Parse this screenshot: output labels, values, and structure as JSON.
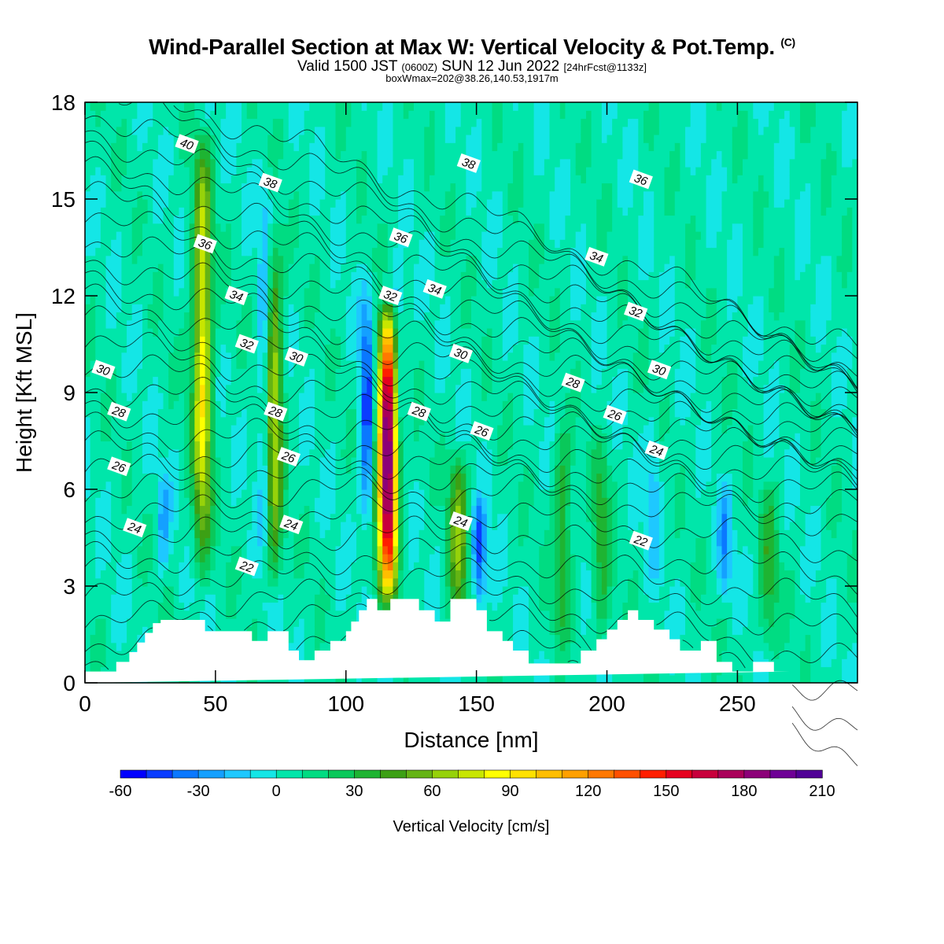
{
  "title": {
    "main": "Wind-Parallel Section at Max W: Vertical Velocity & Pot.Temp.",
    "main_mark": "(C)",
    "valid_prefix": "Valid 1500 JST",
    "valid_utc": "(0600Z)",
    "valid_date": "SUN 12 Jun 2022",
    "valid_fcst": "[24hrFcst@1133z]",
    "box": "boxWmax=202@38.26,140.53,1917m"
  },
  "chart_data": {
    "type": "heatmap",
    "xlabel": "Distance [nm]",
    "ylabel": "Height [Kft MSL]",
    "xlim": [
      0,
      296
    ],
    "ylim": [
      0,
      18
    ],
    "x_ticks": [
      "0",
      "50",
      "100",
      "150",
      "200",
      "250"
    ],
    "x_tick_values": [
      0,
      50,
      100,
      150,
      200,
      250
    ],
    "y_ticks": [
      "0",
      "3",
      "6",
      "9",
      "12",
      "15",
      "18"
    ],
    "y_tick_values": [
      0,
      3,
      6,
      9,
      12,
      15,
      18
    ],
    "colorbar": {
      "label": "Vertical Velocity [cm/s]",
      "ticks": [
        "-60",
        "-30",
        "0",
        "30",
        "60",
        "90",
        "120",
        "150",
        "180",
        "210"
      ],
      "tick_values": [
        -60,
        -30,
        0,
        30,
        60,
        90,
        120,
        150,
        180,
        210
      ],
      "min": -60,
      "max": 210,
      "step": 10,
      "colors": [
        "#0000ff",
        "#0a3cff",
        "#0a78ff",
        "#14a0ff",
        "#1ec8ff",
        "#14e6e6",
        "#00e6aa",
        "#00dc82",
        "#0ac85a",
        "#1eb432",
        "#3ca014",
        "#64b414",
        "#96d20a",
        "#c8e600",
        "#ffff00",
        "#ffe100",
        "#ffbe00",
        "#ffa000",
        "#ff7800",
        "#ff5000",
        "#ff1e00",
        "#e6001e",
        "#c8003c",
        "#aa005a",
        "#8c0078",
        "#6e0096",
        "#500096"
      ]
    },
    "terrain_profile": {
      "x": [
        0,
        12,
        12,
        17,
        17,
        20,
        20,
        23,
        23,
        26,
        26,
        29,
        29,
        32,
        32,
        46,
        46,
        64,
        64,
        70,
        70,
        78,
        78,
        82,
        82,
        88,
        88,
        94,
        94,
        100,
        100,
        102,
        102,
        105,
        105,
        108,
        108,
        112,
        112,
        117,
        117,
        128,
        128,
        134,
        134,
        140,
        140,
        150,
        150,
        154,
        154,
        160,
        160,
        164,
        164,
        170,
        170,
        190,
        190,
        196,
        196,
        200,
        200,
        204,
        204,
        208,
        208,
        212,
        212,
        218,
        218,
        224,
        224,
        228,
        228,
        232,
        232,
        236,
        236,
        242,
        242,
        248,
        248,
        256,
        256,
        264,
        264,
        270,
        270,
        278,
        278,
        296
      ],
      "y": [
        0.35,
        0.35,
        0.65,
        0.65,
        0.95,
        0.95,
        1.25,
        1.25,
        1.55,
        1.55,
        1.85,
        1.85,
        1.95,
        1.95,
        1.95,
        1.95,
        1.6,
        1.6,
        1.3,
        1.3,
        1.6,
        1.6,
        1.0,
        1.0,
        0.7,
        0.7,
        1.0,
        1.0,
        1.3,
        1.3,
        1.6,
        1.6,
        1.9,
        1.9,
        2.25,
        2.25,
        2.6,
        2.6,
        2.25,
        2.25,
        2.6,
        2.6,
        2.25,
        2.25,
        1.9,
        1.9,
        2.6,
        2.6,
        2.25,
        2.25,
        1.6,
        1.6,
        1.3,
        1.3,
        1.0,
        1.0,
        0.6,
        0.6,
        1.0,
        1.0,
        1.35,
        1.35,
        1.65,
        1.65,
        1.95,
        1.95,
        2.25,
        2.25,
        1.95,
        1.95,
        1.65,
        1.65,
        1.35,
        1.35,
        1.0,
        1.0,
        1.0,
        1.0,
        1.3,
        1.3,
        0.65,
        0.65,
        0.35,
        0.35,
        0.65,
        0.65,
        0.35,
        0.35
      ]
    },
    "updraft_cores": [
      {
        "x": 45,
        "y0": 2.8,
        "y1": 17.5,
        "peak": 85
      },
      {
        "x": 72,
        "y0": 2.4,
        "y1": 14.5,
        "peak": 70
      },
      {
        "x": 116,
        "y0": 2.2,
        "y1": 12.0,
        "peak": 202
      },
      {
        "x": 143,
        "y0": 1.5,
        "y1": 7.5,
        "peak": 55
      },
      {
        "x": 183,
        "y0": 0.8,
        "y1": 8.5,
        "peak": 35
      },
      {
        "x": 198,
        "y0": 0.8,
        "y1": 8.0,
        "peak": 30
      },
      {
        "x": 262,
        "y0": 0.5,
        "y1": 6.5,
        "peak": 30
      }
    ],
    "downdraft_cores": [
      {
        "x": 69,
        "y0": 2.0,
        "y1": 16.5,
        "peak": -40
      },
      {
        "x": 108,
        "y0": 4.0,
        "y1": 13.0,
        "peak": -50
      },
      {
        "x": 120,
        "y0": 7.0,
        "y1": 13.5,
        "peak": -30
      },
      {
        "x": 151,
        "y0": 2.0,
        "y1": 6.0,
        "peak": -50
      },
      {
        "x": 30,
        "y0": 3.0,
        "y1": 7.0,
        "peak": -25
      },
      {
        "x": 218,
        "y0": 2.5,
        "y1": 9.0,
        "peak": -20
      },
      {
        "x": 245,
        "y0": 2.0,
        "y1": 6.5,
        "peak": -30
      }
    ],
    "theta_contours": [
      {
        "value": 22,
        "label": "22"
      },
      {
        "value": 24,
        "label": "24"
      },
      {
        "value": 26,
        "label": "26"
      },
      {
        "value": 28,
        "label": "28"
      },
      {
        "value": 30,
        "label": "30"
      },
      {
        "value": 32,
        "label": "32"
      },
      {
        "value": 34,
        "label": "34"
      },
      {
        "value": 36,
        "label": "36"
      },
      {
        "value": 38,
        "label": "38"
      },
      {
        "value": 40,
        "label": "40"
      }
    ],
    "contour_labels": [
      {
        "text": "40",
        "x": 39,
        "y": 16.7
      },
      {
        "text": "38",
        "x": 71,
        "y": 15.5
      },
      {
        "text": "38",
        "x": 147,
        "y": 16.1
      },
      {
        "text": "36",
        "x": 213,
        "y": 15.6
      },
      {
        "text": "36",
        "x": 46,
        "y": 13.6
      },
      {
        "text": "36",
        "x": 121,
        "y": 13.8
      },
      {
        "text": "34",
        "x": 196,
        "y": 13.2
      },
      {
        "text": "34",
        "x": 58,
        "y": 12.0
      },
      {
        "text": "34",
        "x": 134,
        "y": 12.2
      },
      {
        "text": "32",
        "x": 117,
        "y": 12.0
      },
      {
        "text": "32",
        "x": 62,
        "y": 10.5
      },
      {
        "text": "32",
        "x": 211,
        "y": 11.5
      },
      {
        "text": "30",
        "x": 81,
        "y": 10.1
      },
      {
        "text": "30",
        "x": 144,
        "y": 10.2
      },
      {
        "text": "30",
        "x": 7,
        "y": 9.7
      },
      {
        "text": "30",
        "x": 220,
        "y": 9.7
      },
      {
        "text": "28",
        "x": 13,
        "y": 8.4
      },
      {
        "text": "28",
        "x": 73,
        "y": 8.4
      },
      {
        "text": "28",
        "x": 128,
        "y": 8.4
      },
      {
        "text": "28",
        "x": 187,
        "y": 9.3
      },
      {
        "text": "26",
        "x": 203,
        "y": 8.3
      },
      {
        "text": "26",
        "x": 152,
        "y": 7.8
      },
      {
        "text": "26",
        "x": 78,
        "y": 7.0
      },
      {
        "text": "26",
        "x": 13,
        "y": 6.7
      },
      {
        "text": "24",
        "x": 219,
        "y": 7.2
      },
      {
        "text": "24",
        "x": 79,
        "y": 4.9
      },
      {
        "text": "24",
        "x": 144,
        "y": 5.0
      },
      {
        "text": "24",
        "x": 19,
        "y": 4.8
      },
      {
        "text": "22",
        "x": 62,
        "y": 3.6
      },
      {
        "text": "22",
        "x": 213,
        "y": 4.4
      }
    ]
  }
}
